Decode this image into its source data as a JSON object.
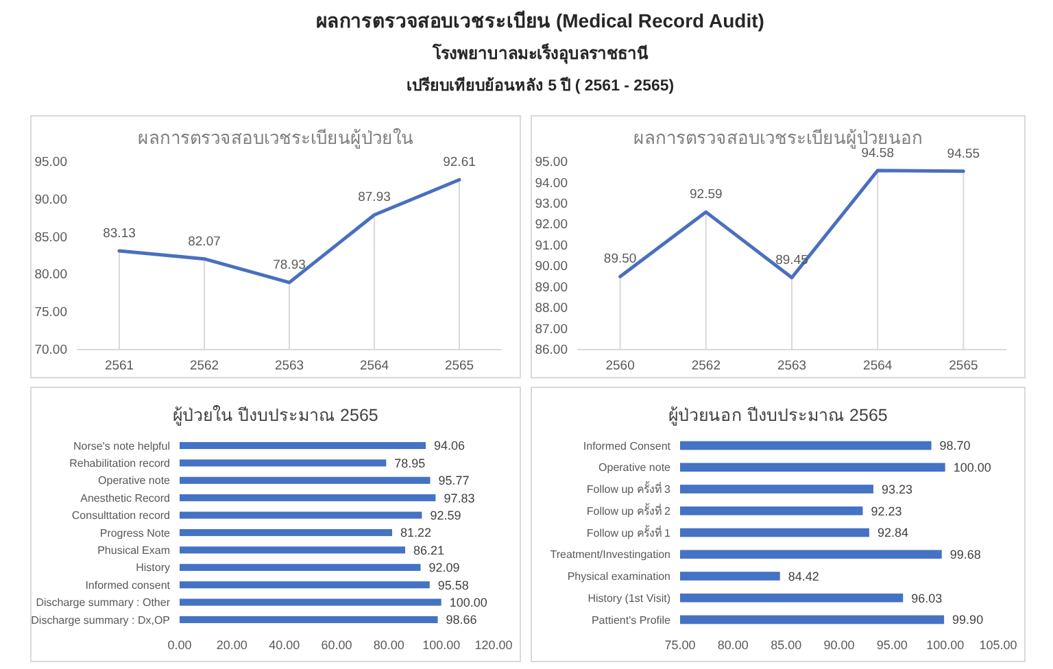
{
  "chart_data": [
    {
      "type": "other",
      "title": "ผลการตรวจสอบเวชระเบียน (Medical Record Audit)",
      "subtitle": "โรงพยาบาลมะเร็งอุบลราชธานี",
      "annotations": [
        "เปรียบเทียบย้อนหลัง 5 ปี ( 2561 - 2565)"
      ]
    },
    {
      "type": "line",
      "title": "ผลการตรวจสอบเวชระเบียนผู้ป่วยใน",
      "categories": [
        "2561",
        "2562",
        "2563",
        "2564",
        "2565"
      ],
      "values": [
        83.13,
        82.07,
        78.93,
        87.93,
        92.61
      ],
      "value_labels": [
        "83.13",
        "82.07",
        "78.93",
        "87.93",
        "92.61"
      ],
      "color": "#4a6fbd",
      "ylim": [
        70,
        95
      ],
      "yticks": [
        {
          "value": 70,
          "label": "70.00"
        },
        {
          "value": 75,
          "label": "75.00"
        },
        {
          "value": 80,
          "label": "80.00"
        },
        {
          "value": 85,
          "label": "85.00"
        },
        {
          "value": 90,
          "label": "90.00"
        },
        {
          "value": 95,
          "label": "95.00"
        }
      ],
      "grid": "x"
    },
    {
      "type": "line",
      "title": "ผลการตรวจสอบเวชระเบียนผู้ป่วยนอก",
      "categories": [
        "2560",
        "2562",
        "2563",
        "2564",
        "2565"
      ],
      "values": [
        89.5,
        92.59,
        89.45,
        94.58,
        94.55
      ],
      "value_labels": [
        "89.50",
        "92.59",
        "89.45",
        "94.58",
        "94.55"
      ],
      "color": "#4a6fbd",
      "ylim": [
        86,
        95
      ],
      "yticks": [
        {
          "value": 86,
          "label": "86.00"
        },
        {
          "value": 87,
          "label": "87.00"
        },
        {
          "value": 88,
          "label": "88.00"
        },
        {
          "value": 89,
          "label": "89.00"
        },
        {
          "value": 90,
          "label": "90.00"
        },
        {
          "value": 91,
          "label": "91.00"
        },
        {
          "value": 92,
          "label": "92.00"
        },
        {
          "value": 93,
          "label": "93.00"
        },
        {
          "value": 94,
          "label": "94.00"
        },
        {
          "value": 95,
          "label": "95.00"
        }
      ],
      "grid": "x"
    },
    {
      "type": "bar",
      "orientation": "horizontal",
      "title": "ผู้ป่วยใน ปีงบประมาณ 2565",
      "categories": [
        "Norse's note helpful",
        "Rehabilitation record",
        "Operative note",
        "Anesthetic Record",
        "Consulttation record",
        "Progress Note",
        "Phusical Exam",
        "History",
        "Informed consent",
        "Discharge summary : Other",
        "Discharge summary : Dx,OP"
      ],
      "values": [
        94.06,
        78.95,
        95.77,
        97.83,
        92.59,
        81.22,
        86.21,
        92.09,
        95.58,
        100.0,
        98.66
      ],
      "value_labels": [
        "94.06",
        "78.95",
        "95.77",
        "97.83",
        "92.59",
        "81.22",
        "86.21",
        "92.09",
        "95.58",
        "100.00",
        "98.66"
      ],
      "color": "#4472c4",
      "xlim": [
        0,
        120
      ],
      "xticks": [
        {
          "value": 0,
          "label": "0.00"
        },
        {
          "value": 20,
          "label": "20.00"
        },
        {
          "value": 40,
          "label": "40.00"
        },
        {
          "value": 60,
          "label": "60.00"
        },
        {
          "value": 80,
          "label": "80.00"
        },
        {
          "value": 100,
          "label": "100.00"
        },
        {
          "value": 120,
          "label": "120.00"
        }
      ]
    },
    {
      "type": "bar",
      "orientation": "horizontal",
      "title": "ผู้ป่วยนอก ปีงบประมาณ 2565",
      "categories": [
        "Informed Consent",
        "Operative note",
        "Follow up ครั้งที่ 3",
        "Follow up ครั้งที่ 2",
        "Follow up ครั้งที่ 1",
        "Treatment/Investingation",
        "Physical examination",
        "History (1st Visit)",
        "Pattient's Profile"
      ],
      "values": [
        98.7,
        100.0,
        93.23,
        92.23,
        92.84,
        99.68,
        84.42,
        96.03,
        99.9
      ],
      "value_labels": [
        "98.70",
        "100.00",
        "93.23",
        "92.23",
        "92.84",
        "99.68",
        "84.42",
        "96.03",
        "99.90"
      ],
      "color": "#4472c4",
      "xlim": [
        75,
        105
      ],
      "xticks": [
        {
          "value": 75,
          "label": "75.00"
        },
        {
          "value": 80,
          "label": "80.00"
        },
        {
          "value": 85,
          "label": "85.00"
        },
        {
          "value": 90,
          "label": "90.00"
        },
        {
          "value": 95,
          "label": "95.00"
        },
        {
          "value": 100,
          "label": "100.00"
        },
        {
          "value": 105,
          "label": "105.00"
        }
      ]
    }
  ]
}
